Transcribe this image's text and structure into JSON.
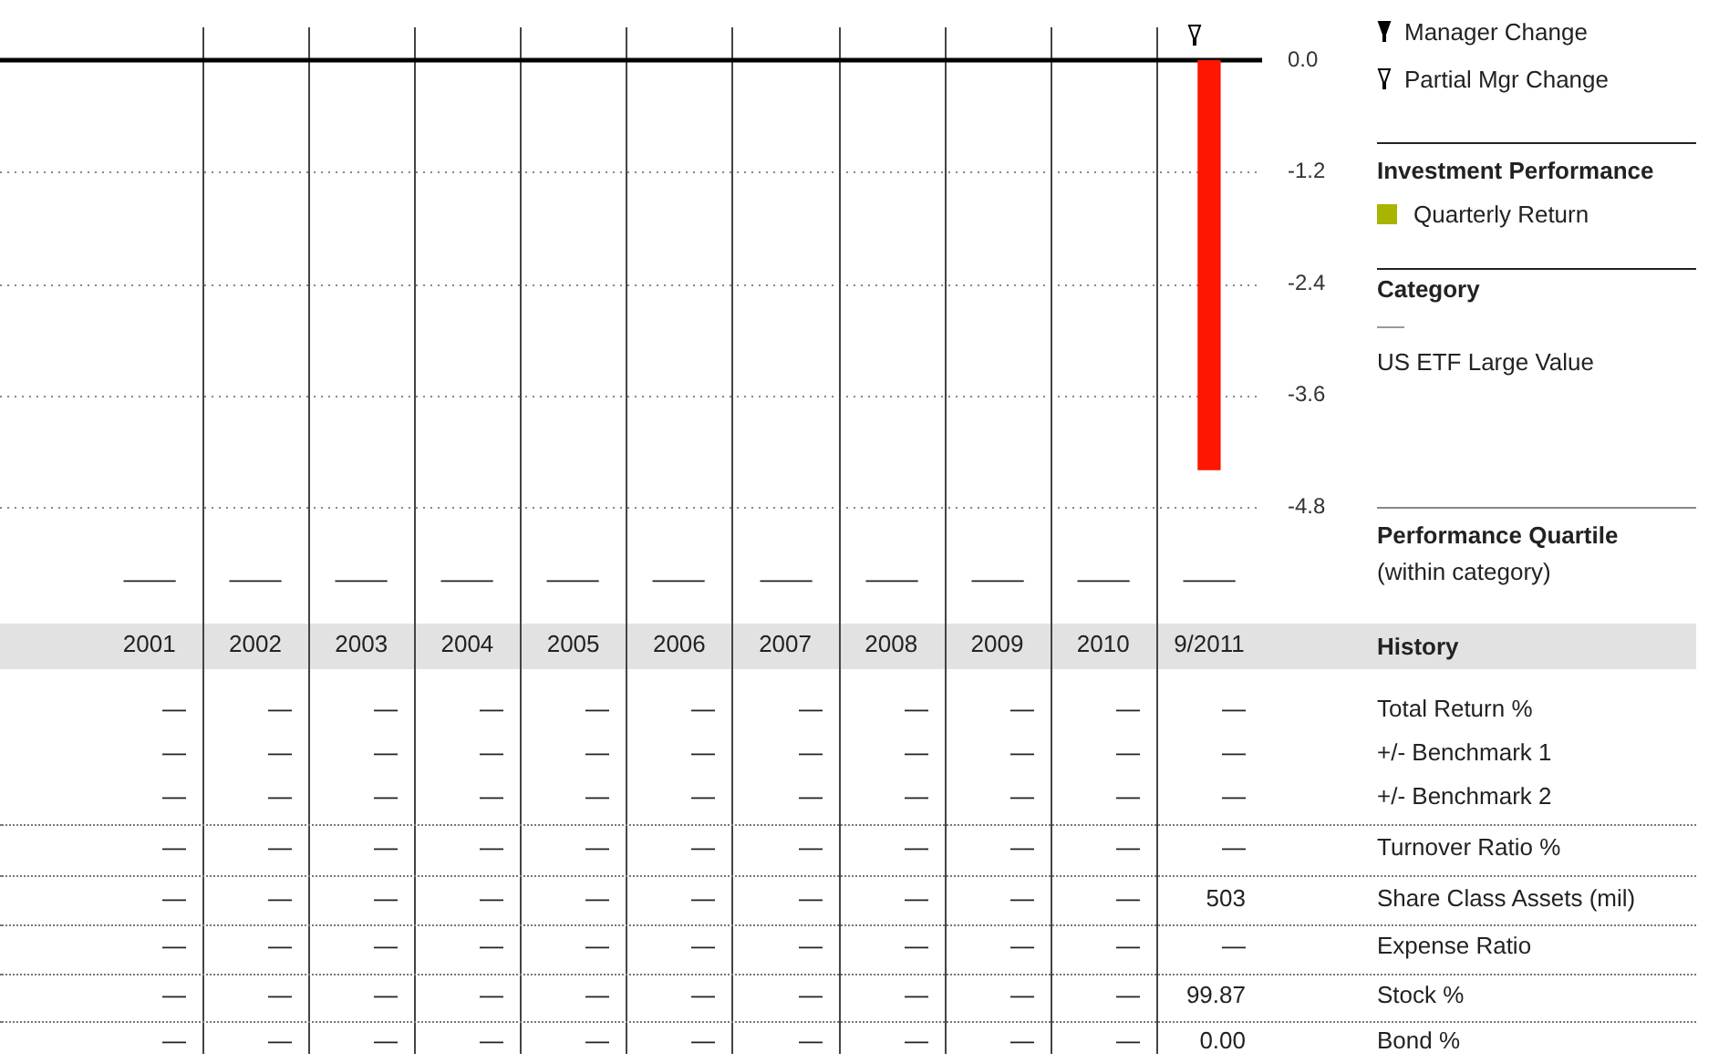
{
  "chart_data": {
    "type": "bar",
    "categories": [
      "2001",
      "2002",
      "2003",
      "2004",
      "2005",
      "2006",
      "2007",
      "2008",
      "2009",
      "2010",
      "9/2011"
    ],
    "series": [
      {
        "name": "Quarterly Return",
        "color": "#a8b400",
        "colors": [
          null,
          null,
          null,
          null,
          null,
          null,
          null,
          null,
          null,
          null,
          "#ff1500"
        ],
        "values": [
          null,
          null,
          null,
          null,
          null,
          null,
          null,
          null,
          null,
          null,
          -4.4
        ]
      }
    ],
    "ylim": [
      -4.8,
      0
    ],
    "yticks": [
      {
        "value": 0,
        "label": "0.0"
      },
      {
        "value": -1.2,
        "label": "-1.2"
      },
      {
        "value": -2.4,
        "label": "-2.4"
      },
      {
        "value": -3.6,
        "label": "-3.6"
      },
      {
        "value": -4.8,
        "label": "-4.8"
      }
    ],
    "grid": "y",
    "legend": "right",
    "annotations": [
      "Manager Change",
      "Partial Mgr Change",
      "Investment Performance",
      "Category",
      "US ETF Large Value",
      "Performance Quartile",
      "(within category)",
      "History",
      "—",
      "—",
      "—",
      "—",
      "—",
      "—",
      "—",
      "—",
      "—",
      "—",
      "—",
      "—",
      "—",
      "—",
      "—",
      "—",
      "—",
      "—",
      "—",
      "—",
      "—",
      "—",
      "Total Return %",
      "—",
      "—",
      "—",
      "—",
      "—",
      "—",
      "—",
      "—",
      "—",
      "—",
      "—",
      "+/- Benchmark 1",
      "—",
      "—",
      "—",
      "—",
      "—",
      "—",
      "—",
      "—",
      "—",
      "—",
      "—",
      "+/- Benchmark 2",
      "—",
      "—",
      "—",
      "—",
      "—",
      "—",
      "—",
      "—",
      "—",
      "—",
      "—",
      "Turnover Ratio %",
      "—",
      "—",
      "—",
      "—",
      "—",
      "—",
      "—",
      "—",
      "—",
      "—",
      "503",
      "Share Class Assets (mil)",
      "—",
      "—",
      "—",
      "—",
      "—",
      "—",
      "—",
      "—",
      "—",
      "—",
      "—",
      "Expense Ratio",
      "—",
      "—",
      "—",
      "—",
      "—",
      "—",
      "—",
      "—",
      "—",
      "—",
      "99.87",
      "Stock %",
      "—",
      "—",
      "—",
      "—",
      "—",
      "—",
      "—",
      "—",
      "—",
      "—",
      "0.00",
      "Bond %"
    ]
  }
}
